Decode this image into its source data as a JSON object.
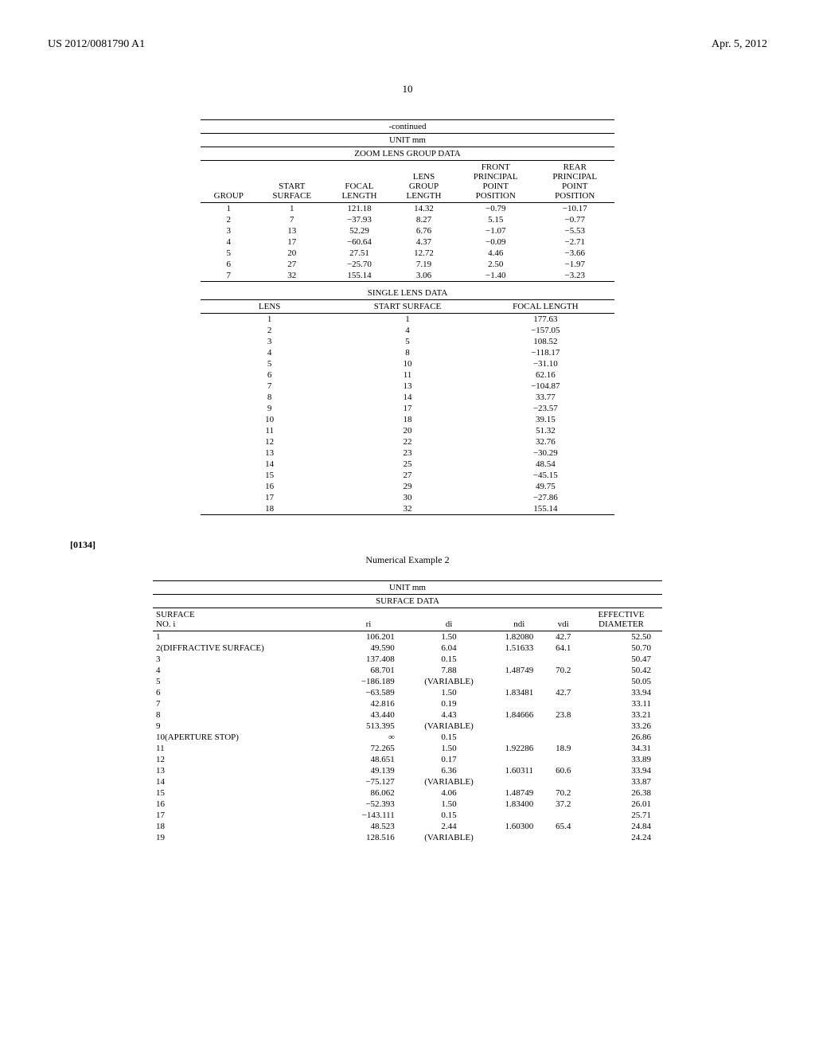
{
  "header": {
    "pub_number": "US 2012/0081790 A1",
    "pub_date": "Apr. 5, 2012"
  },
  "page_number": "10",
  "cont_label": "-continued",
  "unit_label": "UNIT mm",
  "zoom_group": {
    "title": "ZOOM LENS GROUP DATA",
    "cols": [
      "GROUP",
      "START\nSURFACE",
      "FOCAL\nLENGTH",
      "LENS\nGROUP\nLENGTH",
      "FRONT\nPRINCIPAL\nPOINT\nPOSITION",
      "REAR\nPRINCIPAL\nPOINT\nPOSITION"
    ],
    "rows": [
      [
        "1",
        "1",
        "121.18",
        "14.32",
        "−0.79",
        "−10.17"
      ],
      [
        "2",
        "7",
        "−37.93",
        "8.27",
        "5.15",
        "−0.77"
      ],
      [
        "3",
        "13",
        "52.29",
        "6.76",
        "−1.07",
        "−5.53"
      ],
      [
        "4",
        "17",
        "−60.64",
        "4.37",
        "−0.09",
        "−2.71"
      ],
      [
        "5",
        "20",
        "27.51",
        "12.72",
        "4.46",
        "−3.66"
      ],
      [
        "6",
        "27",
        "−25.70",
        "7.19",
        "2.50",
        "−1.97"
      ],
      [
        "7",
        "32",
        "155.14",
        "3.06",
        "−1.40",
        "−3.23"
      ]
    ]
  },
  "single_lens": {
    "title": "SINGLE LENS DATA",
    "cols": [
      "LENS",
      "START SURFACE",
      "FOCAL LENGTH"
    ],
    "rows": [
      [
        "1",
        "1",
        "177.63"
      ],
      [
        "2",
        "4",
        "−157.05"
      ],
      [
        "3",
        "5",
        "108.52"
      ],
      [
        "4",
        "8",
        "−118.17"
      ],
      [
        "5",
        "10",
        "−31.10"
      ],
      [
        "6",
        "11",
        "62.16"
      ],
      [
        "7",
        "13",
        "−104.87"
      ],
      [
        "8",
        "14",
        "33.77"
      ],
      [
        "9",
        "17",
        "−23.57"
      ],
      [
        "10",
        "18",
        "39.15"
      ],
      [
        "11",
        "20",
        "51.32"
      ],
      [
        "12",
        "22",
        "32.76"
      ],
      [
        "13",
        "23",
        "−30.29"
      ],
      [
        "14",
        "25",
        "48.54"
      ],
      [
        "15",
        "27",
        "−45.15"
      ],
      [
        "16",
        "29",
        "49.75"
      ],
      [
        "17",
        "30",
        "−27.86"
      ],
      [
        "18",
        "32",
        "155.14"
      ]
    ]
  },
  "para_num": "[0134]",
  "num_example_label": "Numerical Example 2",
  "surface_data": {
    "title": "SURFACE DATA",
    "cols": [
      "SURFACE\nNO. i",
      "ri",
      "di",
      "ndi",
      "vdi",
      "EFFECTIVE\nDIAMETER"
    ],
    "rows": [
      [
        "1",
        "106.201",
        "1.50",
        "1.82080",
        "42.7",
        "52.50"
      ],
      [
        "2(DIFFRACTIVE SURFACE)",
        "49.590",
        "6.04",
        "1.51633",
        "64.1",
        "50.70"
      ],
      [
        "3",
        "137.408",
        "0.15",
        "",
        "",
        "50.47"
      ],
      [
        "4",
        "68.701",
        "7.88",
        "1.48749",
        "70.2",
        "50.42"
      ],
      [
        "5",
        "−186.189",
        "(VARIABLE)",
        "",
        "",
        "50.05"
      ],
      [
        "6",
        "−63.589",
        "1.50",
        "1.83481",
        "42.7",
        "33.94"
      ],
      [
        "7",
        "42.816",
        "0.19",
        "",
        "",
        "33.11"
      ],
      [
        "8",
        "43.440",
        "4.43",
        "1.84666",
        "23.8",
        "33.21"
      ],
      [
        "9",
        "513.395",
        "(VARIABLE)",
        "",
        "",
        "33.26"
      ],
      [
        "10(APERTURE STOP)",
        "∞",
        "0.15",
        "",
        "",
        "26.86"
      ],
      [
        "11",
        "72.265",
        "1.50",
        "1.92286",
        "18.9",
        "34.31"
      ],
      [
        "12",
        "48.651",
        "0.17",
        "",
        "",
        "33.89"
      ],
      [
        "13",
        "49.139",
        "6.36",
        "1.60311",
        "60.6",
        "33.94"
      ],
      [
        "14",
        "−75.127",
        "(VARIABLE)",
        "",
        "",
        "33.87"
      ],
      [
        "15",
        "86.062",
        "4.06",
        "1.48749",
        "70.2",
        "26.38"
      ],
      [
        "16",
        "−52.393",
        "1.50",
        "1.83400",
        "37.2",
        "26.01"
      ],
      [
        "17",
        "−143.111",
        "0.15",
        "",
        "",
        "25.71"
      ],
      [
        "18",
        "48.523",
        "2.44",
        "1.60300",
        "65.4",
        "24.84"
      ],
      [
        "19",
        "128.516",
        "(VARIABLE)",
        "",
        "",
        "24.24"
      ]
    ]
  },
  "style": {
    "page_bg": "#ffffff",
    "text_color": "#000000",
    "rule_color": "#000000",
    "body_font_size_pt": 12,
    "table_font_size_pt": 11,
    "header_font_size_pt": 14
  }
}
